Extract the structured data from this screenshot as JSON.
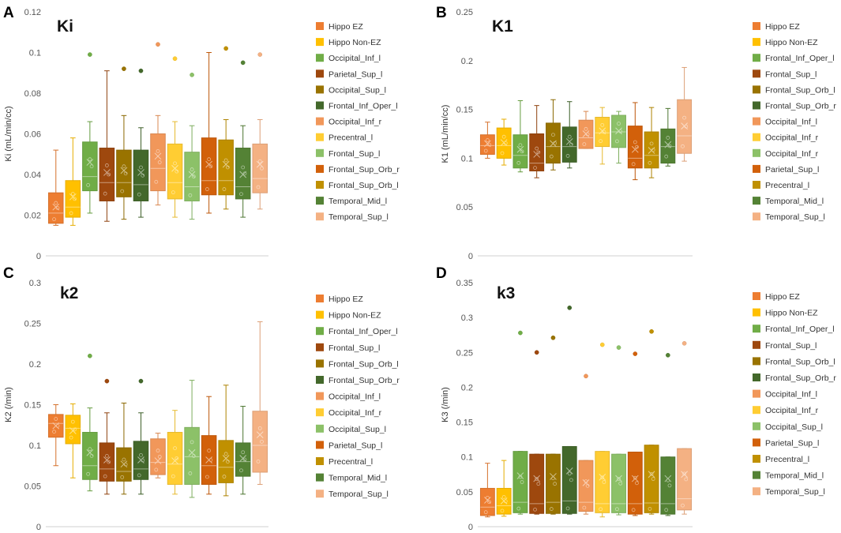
{
  "colors": {
    "Hippo EZ": "#ED7D31",
    "Hippo Non-EZ": "#FFC000",
    "Occipital_Inf_l": "#70AD47",
    "Parietal_Sup_l": "#9E480E",
    "Occipital_Sup_l": "#997300",
    "Frontal_Inf_Oper_l": "#43682B",
    "Occipital_Inf_r": "#F1975A",
    "Precentral_l": "#FFCD33",
    "Frontal_Sup_l": "#8CC168",
    "Frontal_Sup_Orb_r": "#D2600A",
    "Frontal_Sup_Orb_l": "#C09000",
    "Temporal_Mid_l": "#548235",
    "Temporal_Sup_l": "#F4B183"
  },
  "chart_data": [
    {
      "letter": "A",
      "title": "Ki",
      "type": "box",
      "ylabel": "Ki (mL/min/cc)",
      "ylim": [
        0,
        0.12
      ],
      "yticks": [
        "0",
        "0.02",
        "0.04",
        "0.06",
        "0.08",
        "0.1",
        "0.12"
      ],
      "legend": [
        {
          "name": "Hippo EZ",
          "color": "#ED7D31"
        },
        {
          "name": "Hippo Non-EZ",
          "color": "#FFC000"
        },
        {
          "name": "Occipital_Inf_l",
          "color": "#70AD47"
        },
        {
          "name": "Parietal_Sup_l",
          "color": "#9E480E"
        },
        {
          "name": "Occipital_Sup_l",
          "color": "#997300"
        },
        {
          "name": "Frontal_Inf_Oper_l",
          "color": "#43682B"
        },
        {
          "name": "Occipital_Inf_r",
          "color": "#F1975A"
        },
        {
          "name": "Precentral_l",
          "color": "#FFCD33"
        },
        {
          "name": "Frontal_Sup_l",
          "color": "#8CC168"
        },
        {
          "name": "Frontal_Sup_Orb_r",
          "color": "#D2600A"
        },
        {
          "name": "Frontal_Sup_Orb_l",
          "color": "#C09000"
        },
        {
          "name": "Temporal_Mid_l",
          "color": "#548235"
        },
        {
          "name": "Temporal_Sup_l",
          "color": "#F4B183"
        }
      ],
      "boxes": [
        {
          "name": "Hippo EZ",
          "min": 0.015,
          "q1": 0.016,
          "median": 0.021,
          "q3": 0.031,
          "max": 0.052,
          "mean": 0.024,
          "outliers": []
        },
        {
          "name": "Hippo Non-EZ",
          "min": 0.015,
          "q1": 0.019,
          "median": 0.024,
          "q3": 0.037,
          "max": 0.058,
          "mean": 0.029,
          "outliers": []
        },
        {
          "name": "Occipital_Inf_l",
          "min": 0.021,
          "q1": 0.032,
          "median": 0.039,
          "q3": 0.056,
          "max": 0.066,
          "mean": 0.046,
          "outliers": [
            0.099
          ]
        },
        {
          "name": "Parietal_Sup_l",
          "min": 0.017,
          "q1": 0.027,
          "median": 0.036,
          "q3": 0.053,
          "max": 0.091,
          "mean": 0.041,
          "outliers": []
        },
        {
          "name": "Occipital_Sup_l",
          "min": 0.018,
          "q1": 0.029,
          "median": 0.036,
          "q3": 0.052,
          "max": 0.069,
          "mean": 0.042,
          "outliers": [
            0.092
          ]
        },
        {
          "name": "Frontal_Inf_Oper_l",
          "min": 0.019,
          "q1": 0.027,
          "median": 0.035,
          "q3": 0.052,
          "max": 0.063,
          "mean": 0.041,
          "outliers": [
            0.091
          ]
        },
        {
          "name": "Occipital_Inf_r",
          "min": 0.025,
          "q1": 0.032,
          "median": 0.043,
          "q3": 0.06,
          "max": 0.069,
          "mean": 0.049,
          "outliers": [
            0.104
          ]
        },
        {
          "name": "Precentral_l",
          "min": 0.019,
          "q1": 0.028,
          "median": 0.036,
          "q3": 0.055,
          "max": 0.066,
          "mean": 0.043,
          "outliers": [
            0.097
          ]
        },
        {
          "name": "Frontal_Sup_l",
          "min": 0.018,
          "q1": 0.027,
          "median": 0.034,
          "q3": 0.051,
          "max": 0.064,
          "mean": 0.04,
          "outliers": [
            0.089
          ]
        },
        {
          "name": "Frontal_Sup_Orb_r",
          "min": 0.021,
          "q1": 0.03,
          "median": 0.037,
          "q3": 0.058,
          "max": 0.1,
          "mean": 0.045,
          "outliers": []
        },
        {
          "name": "Frontal_Sup_Orb_l",
          "min": 0.023,
          "q1": 0.03,
          "median": 0.037,
          "q3": 0.057,
          "max": 0.067,
          "mean": 0.045,
          "outliers": [
            0.102
          ]
        },
        {
          "name": "Temporal_Mid_l",
          "min": 0.019,
          "q1": 0.028,
          "median": 0.034,
          "q3": 0.053,
          "max": 0.064,
          "mean": 0.04,
          "outliers": [
            0.095
          ]
        },
        {
          "name": "Temporal_Sup_l",
          "min": 0.023,
          "q1": 0.031,
          "median": 0.038,
          "q3": 0.055,
          "max": 0.067,
          "mean": 0.045,
          "outliers": [
            0.099
          ]
        }
      ]
    },
    {
      "letter": "B",
      "title": "K1",
      "type": "box",
      "ylabel": "K1 (mL/min/cc)",
      "ylim": [
        0,
        0.25
      ],
      "yticks": [
        "0",
        "0.05",
        "0.1",
        "0.15",
        "0.2",
        "0.25"
      ],
      "legend": [
        {
          "name": "Hippo EZ",
          "color": "#ED7D31"
        },
        {
          "name": "Hippo Non-EZ",
          "color": "#FFC000"
        },
        {
          "name": "Frontal_Inf_Oper_l",
          "color": "#70AD47"
        },
        {
          "name": "Frontal_Sup_l",
          "color": "#9E480E"
        },
        {
          "name": "Frontal_Sup_Orb_l",
          "color": "#997300"
        },
        {
          "name": "Frontal_Sup_Orb_r",
          "color": "#43682B"
        },
        {
          "name": "Occipital_Inf_l",
          "color": "#F1975A"
        },
        {
          "name": "Occipital_Inf_r",
          "color": "#FFCD33"
        },
        {
          "name": "Occipital_Inf_r",
          "color": "#8CC168"
        },
        {
          "name": "Parietal_Sup_l",
          "color": "#D2600A"
        },
        {
          "name": "Precentral_l",
          "color": "#C09000"
        },
        {
          "name": "Temporal_Mid_l",
          "color": "#548235"
        },
        {
          "name": "Temporal_Sup_l",
          "color": "#F4B183"
        }
      ],
      "boxes": [
        {
          "name": "Hippo EZ",
          "min": 0.1,
          "q1": 0.104,
          "median": 0.113,
          "q3": 0.124,
          "max": 0.137,
          "mean": 0.115,
          "outliers": []
        },
        {
          "name": "Hippo Non-EZ",
          "min": 0.093,
          "q1": 0.1,
          "median": 0.113,
          "q3": 0.131,
          "max": 0.14,
          "mean": 0.116,
          "outliers": []
        },
        {
          "name": "Frontal_Inf_Oper_l",
          "min": 0.086,
          "q1": 0.09,
          "median": 0.103,
          "q3": 0.124,
          "max": 0.159,
          "mean": 0.109,
          "outliers": []
        },
        {
          "name": "Frontal_Sup_l",
          "min": 0.08,
          "q1": 0.087,
          "median": 0.095,
          "q3": 0.125,
          "max": 0.154,
          "mean": 0.104,
          "outliers": []
        },
        {
          "name": "Frontal_Sup_Orb_l",
          "min": 0.088,
          "q1": 0.095,
          "median": 0.112,
          "q3": 0.136,
          "max": 0.16,
          "mean": 0.115,
          "outliers": []
        },
        {
          "name": "Frontal_Sup_Orb_r",
          "min": 0.09,
          "q1": 0.096,
          "median": 0.112,
          "q3": 0.132,
          "max": 0.158,
          "mean": 0.117,
          "outliers": []
        },
        {
          "name": "Occipital_Inf_l",
          "min": 0.11,
          "q1": 0.11,
          "median": 0.121,
          "q3": 0.139,
          "max": 0.148,
          "mean": 0.125,
          "outliers": []
        },
        {
          "name": "Occipital_Inf_r",
          "min": 0.094,
          "q1": 0.112,
          "median": 0.126,
          "q3": 0.142,
          "max": 0.152,
          "mean": 0.128,
          "outliers": []
        },
        {
          "name": "Occipital_Inf_r",
          "min": 0.095,
          "q1": 0.111,
          "median": 0.127,
          "q3": 0.144,
          "max": 0.148,
          "mean": 0.128,
          "outliers": []
        },
        {
          "name": "Parietal_Sup_l",
          "min": 0.078,
          "q1": 0.09,
          "median": 0.1,
          "q3": 0.133,
          "max": 0.157,
          "mean": 0.109,
          "outliers": []
        },
        {
          "name": "Precentral_l",
          "min": 0.08,
          "q1": 0.09,
          "median": 0.103,
          "q3": 0.127,
          "max": 0.152,
          "mean": 0.108,
          "outliers": []
        },
        {
          "name": "Temporal_Mid_l",
          "min": 0.092,
          "q1": 0.095,
          "median": 0.112,
          "q3": 0.13,
          "max": 0.151,
          "mean": 0.114,
          "outliers": []
        },
        {
          "name": "Temporal_Sup_l",
          "min": 0.097,
          "q1": 0.105,
          "median": 0.123,
          "q3": 0.16,
          "max": 0.193,
          "mean": 0.133,
          "outliers": []
        }
      ]
    },
    {
      "letter": "C",
      "title": "k2",
      "type": "box",
      "ylabel": "K2 (/min)",
      "ylim": [
        0,
        0.3
      ],
      "yticks": [
        "0",
        "0.05",
        "0.1",
        "0.15",
        "0.2",
        "0.25",
        "0.3"
      ],
      "legend": [
        {
          "name": "Hippo EZ",
          "color": "#ED7D31"
        },
        {
          "name": "Hippo Non-EZ",
          "color": "#FFC000"
        },
        {
          "name": "Frontal_Inf_Oper_l",
          "color": "#70AD47"
        },
        {
          "name": "Frontal_Sup_l",
          "color": "#9E480E"
        },
        {
          "name": "Frontal_Sup_Orb_l",
          "color": "#997300"
        },
        {
          "name": "Frontal_Sup_Orb_r",
          "color": "#43682B"
        },
        {
          "name": "Occipital_Inf_l",
          "color": "#F1975A"
        },
        {
          "name": "Occipital_Inf_r",
          "color": "#FFCD33"
        },
        {
          "name": "Occipital_Sup_l",
          "color": "#8CC168"
        },
        {
          "name": "Parietal_Sup_l",
          "color": "#D2600A"
        },
        {
          "name": "Precentral_l",
          "color": "#C09000"
        },
        {
          "name": "Temporal_Mid_l",
          "color": "#548235"
        },
        {
          "name": "Temporal_Sup_l",
          "color": "#F4B183"
        }
      ],
      "boxes": [
        {
          "name": "Hippo EZ",
          "min": 0.075,
          "q1": 0.11,
          "median": 0.127,
          "q3": 0.138,
          "max": 0.15,
          "mean": 0.124,
          "outliers": []
        },
        {
          "name": "Hippo Non-EZ",
          "min": 0.06,
          "q1": 0.102,
          "median": 0.121,
          "q3": 0.137,
          "max": 0.151,
          "mean": 0.118,
          "outliers": []
        },
        {
          "name": "Frontal_Inf_Oper_l",
          "min": 0.044,
          "q1": 0.058,
          "median": 0.075,
          "q3": 0.116,
          "max": 0.146,
          "mean": 0.091,
          "outliers": [
            0.21
          ]
        },
        {
          "name": "Frontal_Sup_l",
          "min": 0.04,
          "q1": 0.056,
          "median": 0.071,
          "q3": 0.103,
          "max": 0.14,
          "mean": 0.082,
          "outliers": [
            0.179
          ]
        },
        {
          "name": "Frontal_Sup_Orb_l",
          "min": 0.04,
          "q1": 0.056,
          "median": 0.068,
          "q3": 0.097,
          "max": 0.152,
          "mean": 0.077,
          "outliers": []
        },
        {
          "name": "Frontal_Sup_Orb_r",
          "min": 0.04,
          "q1": 0.058,
          "median": 0.071,
          "q3": 0.105,
          "max": 0.14,
          "mean": 0.082,
          "outliers": [
            0.179
          ]
        },
        {
          "name": "Occipital_Inf_l",
          "min": 0.06,
          "q1": 0.064,
          "median": 0.079,
          "q3": 0.108,
          "max": 0.115,
          "mean": 0.081,
          "outliers": []
        },
        {
          "name": "Occipital_Inf_r",
          "min": 0.04,
          "q1": 0.052,
          "median": 0.077,
          "q3": 0.116,
          "max": 0.143,
          "mean": 0.081,
          "outliers": []
        },
        {
          "name": "Occipital_Sup_l",
          "min": 0.036,
          "q1": 0.052,
          "median": 0.086,
          "q3": 0.122,
          "max": 0.18,
          "mean": 0.091,
          "outliers": []
        },
        {
          "name": "Parietal_Sup_l",
          "min": 0.04,
          "q1": 0.052,
          "median": 0.075,
          "q3": 0.112,
          "max": 0.16,
          "mean": 0.082,
          "outliers": []
        },
        {
          "name": "Precentral_l",
          "min": 0.038,
          "q1": 0.054,
          "median": 0.073,
          "q3": 0.106,
          "max": 0.174,
          "mean": 0.084,
          "outliers": []
        },
        {
          "name": "Temporal_Mid_l",
          "min": 0.04,
          "q1": 0.062,
          "median": 0.08,
          "q3": 0.103,
          "max": 0.148,
          "mean": 0.084,
          "outliers": []
        },
        {
          "name": "Temporal_Sup_l",
          "min": 0.052,
          "q1": 0.067,
          "median": 0.1,
          "q3": 0.142,
          "max": 0.252,
          "mean": 0.113,
          "outliers": []
        }
      ]
    },
    {
      "letter": "D",
      "title": "k3",
      "type": "box",
      "ylabel": "K3 (/min)",
      "ylim": [
        0,
        0.35
      ],
      "yticks": [
        "0",
        "0.05",
        "0.1",
        "0.15",
        "0.2",
        "0.25",
        "0.3",
        "0.35"
      ],
      "legend": [
        {
          "name": "Hippo EZ",
          "color": "#ED7D31"
        },
        {
          "name": "Hippo Non-EZ",
          "color": "#FFC000"
        },
        {
          "name": "Frontal_Inf_Oper_l",
          "color": "#70AD47"
        },
        {
          "name": "Frontal_Sup_l",
          "color": "#9E480E"
        },
        {
          "name": "Frontal_Sup_Orb_l",
          "color": "#997300"
        },
        {
          "name": "Frontal_Sup_Orb_r",
          "color": "#43682B"
        },
        {
          "name": "Occipital_Inf_l",
          "color": "#F1975A"
        },
        {
          "name": "Occipital_Inf_r",
          "color": "#FFCD33"
        },
        {
          "name": "Occipital_Sup_l",
          "color": "#8CC168"
        },
        {
          "name": "Parietal_Sup_l",
          "color": "#D2600A"
        },
        {
          "name": "Precentral_l",
          "color": "#C09000"
        },
        {
          "name": "Temporal_Mid_l",
          "color": "#548235"
        },
        {
          "name": "Temporal_Sup_l",
          "color": "#F4B183"
        }
      ],
      "boxes": [
        {
          "name": "Hippo EZ",
          "min": 0.014,
          "q1": 0.016,
          "median": 0.028,
          "q3": 0.055,
          "max": 0.091,
          "mean": 0.038,
          "outliers": []
        },
        {
          "name": "Hippo Non-EZ",
          "min": 0.015,
          "q1": 0.018,
          "median": 0.03,
          "q3": 0.055,
          "max": 0.095,
          "mean": 0.037,
          "outliers": []
        },
        {
          "name": "Frontal_Inf_Oper_l",
          "min": 0.018,
          "q1": 0.02,
          "median": 0.035,
          "q3": 0.108,
          "max": 0.108,
          "mean": 0.073,
          "outliers": [
            0.278
          ]
        },
        {
          "name": "Frontal_Sup_l",
          "min": 0.018,
          "q1": 0.019,
          "median": 0.033,
          "q3": 0.104,
          "max": 0.104,
          "mean": 0.069,
          "outliers": [
            0.25
          ]
        },
        {
          "name": "Frontal_Sup_Orb_l",
          "min": 0.018,
          "q1": 0.019,
          "median": 0.035,
          "q3": 0.104,
          "max": 0.104,
          "mean": 0.072,
          "outliers": [
            0.271
          ]
        },
        {
          "name": "Frontal_Sup_Orb_r",
          "min": 0.018,
          "q1": 0.019,
          "median": 0.037,
          "q3": 0.115,
          "max": 0.115,
          "mean": 0.08,
          "outliers": [
            0.314
          ]
        },
        {
          "name": "Occipital_Inf_l",
          "min": 0.018,
          "q1": 0.022,
          "median": 0.035,
          "q3": 0.095,
          "max": 0.095,
          "mean": 0.063,
          "outliers": [
            0.216
          ]
        },
        {
          "name": "Occipital_Inf_r",
          "min": 0.014,
          "q1": 0.02,
          "median": 0.033,
          "q3": 0.108,
          "max": 0.108,
          "mean": 0.071,
          "outliers": [
            0.261
          ]
        },
        {
          "name": "Occipital_Sup_l",
          "min": 0.017,
          "q1": 0.02,
          "median": 0.033,
          "q3": 0.104,
          "max": 0.104,
          "mean": 0.069,
          "outliers": [
            0.257
          ]
        },
        {
          "name": "Parietal_Sup_l",
          "min": 0.016,
          "q1": 0.018,
          "median": 0.033,
          "q3": 0.107,
          "max": 0.107,
          "mean": 0.069,
          "outliers": [
            0.248
          ]
        },
        {
          "name": "Precentral_l",
          "min": 0.018,
          "q1": 0.02,
          "median": 0.034,
          "q3": 0.117,
          "max": 0.117,
          "mean": 0.075,
          "outliers": [
            0.28
          ]
        },
        {
          "name": "Temporal_Mid_l",
          "min": 0.016,
          "q1": 0.018,
          "median": 0.033,
          "q3": 0.1,
          "max": 0.1,
          "mean": 0.069,
          "outliers": [
            0.246
          ]
        },
        {
          "name": "Temporal_Sup_l",
          "min": 0.018,
          "q1": 0.024,
          "median": 0.04,
          "q3": 0.112,
          "max": 0.112,
          "mean": 0.075,
          "outliers": [
            0.263
          ]
        }
      ]
    }
  ]
}
